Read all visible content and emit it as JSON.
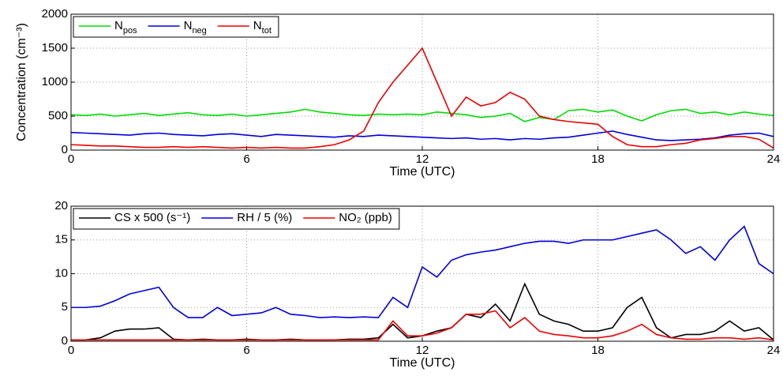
{
  "chart_data": [
    {
      "type": "line",
      "xlabel": "Time (UTC)",
      "ylabel": "Concentration (cm⁻³)",
      "x": [
        0,
        0.5,
        1,
        1.5,
        2,
        2.5,
        3,
        3.5,
        4,
        4.5,
        5,
        5.5,
        6,
        6.5,
        7,
        7.5,
        8,
        8.5,
        9,
        9.5,
        10,
        10.5,
        11,
        11.5,
        12,
        12.5,
        13,
        13.5,
        14,
        14.5,
        15,
        15.5,
        16,
        16.5,
        17,
        17.5,
        18,
        18.5,
        19,
        19.5,
        20,
        20.5,
        21,
        21.5,
        22,
        22.5,
        23,
        23.5,
        24
      ],
      "series": [
        {
          "name": "Npos",
          "color": "#00dd00",
          "values": [
            520,
            510,
            530,
            500,
            520,
            540,
            510,
            530,
            550,
            520,
            510,
            530,
            500,
            520,
            540,
            560,
            600,
            560,
            540,
            520,
            510,
            530,
            520,
            530,
            520,
            560,
            540,
            520,
            480,
            500,
            540,
            420,
            480,
            450,
            580,
            600,
            560,
            590,
            500,
            430,
            520,
            580,
            600,
            540,
            560,
            520,
            560,
            530,
            510
          ]
        },
        {
          "name": "Nneg",
          "color": "#0000dd",
          "values": [
            260,
            250,
            240,
            230,
            220,
            240,
            250,
            230,
            220,
            210,
            230,
            240,
            220,
            200,
            230,
            220,
            210,
            200,
            190,
            210,
            200,
            220,
            210,
            200,
            190,
            180,
            170,
            180,
            160,
            170,
            150,
            170,
            160,
            180,
            190,
            220,
            250,
            280,
            230,
            190,
            150,
            140,
            150,
            160,
            180,
            220,
            240,
            250,
            200
          ]
        },
        {
          "name": "Ntot",
          "color": "#ee0000",
          "values": [
            80,
            70,
            60,
            60,
            50,
            40,
            40,
            50,
            40,
            50,
            40,
            30,
            40,
            30,
            40,
            30,
            30,
            50,
            80,
            150,
            280,
            700,
            1000,
            1250,
            1500,
            1000,
            500,
            780,
            650,
            700,
            850,
            750,
            500,
            450,
            420,
            400,
            380,
            200,
            80,
            50,
            50,
            80,
            100,
            150,
            170,
            200,
            200,
            160,
            30
          ]
        }
      ],
      "xlim": [
        0,
        24
      ],
      "xticks": [
        0,
        6,
        12,
        18,
        24
      ],
      "ylim": [
        0,
        2000
      ],
      "yticks": [
        0,
        500,
        1000,
        1500,
        2000
      ],
      "grid": true,
      "legend": "top-left"
    },
    {
      "type": "line",
      "xlabel": "Time (UTC)",
      "x": [
        0,
        0.5,
        1,
        1.5,
        2,
        2.5,
        3,
        3.5,
        4,
        4.5,
        5,
        5.5,
        6,
        6.5,
        7,
        7.5,
        8,
        8.5,
        9,
        9.5,
        10,
        10.5,
        11,
        11.5,
        12,
        12.5,
        13,
        13.5,
        14,
        14.5,
        15,
        15.5,
        16,
        16.5,
        17,
        17.5,
        18,
        18.5,
        19,
        19.5,
        20,
        20.5,
        21,
        21.5,
        22,
        22.5,
        23,
        23.5,
        24
      ],
      "series": [
        {
          "name": "CS x 500 (s⁻¹)",
          "color": "#000000",
          "values": [
            0.2,
            0.2,
            0.5,
            1.5,
            1.8,
            1.8,
            2,
            0.3,
            0.2,
            0.3,
            0.2,
            0.2,
            0.3,
            0.2,
            0.2,
            0.3,
            0.2,
            0.2,
            0.2,
            0.3,
            0.3,
            0.5,
            2.5,
            0.5,
            0.8,
            1.5,
            2,
            4,
            3.5,
            5.5,
            3,
            8.5,
            4,
            3,
            2.5,
            1.5,
            1.5,
            2,
            5,
            6.5,
            2,
            0.5,
            1,
            1,
            1.5,
            3,
            1.5,
            2,
            0.2
          ]
        },
        {
          "name": "RH / 5 (%)",
          "color": "#0000dd",
          "values": [
            5,
            5,
            5.2,
            6,
            7,
            7.5,
            8,
            5,
            3.5,
            3.5,
            5,
            3.8,
            4,
            4.2,
            5,
            4,
            3.8,
            3.5,
            3.6,
            3.5,
            3.6,
            3.5,
            6.5,
            5,
            11,
            9.5,
            12,
            12.8,
            13.2,
            13.5,
            14,
            14.5,
            14.8,
            14.8,
            14.5,
            15,
            15,
            15,
            15.5,
            16,
            16.5,
            15,
            13,
            14,
            12,
            15,
            17,
            11.5,
            10
          ]
        },
        {
          "name": "NO₂ (ppb)",
          "color": "#ee0000",
          "values": [
            0.2,
            0.2,
            0.2,
            0.2,
            0.2,
            0.2,
            0.2,
            0.2,
            0.2,
            0.2,
            0.2,
            0.2,
            0.2,
            0.2,
            0.2,
            0.2,
            0.2,
            0.2,
            0.2,
            0.2,
            0.2,
            0.2,
            3,
            0.8,
            0.8,
            1.2,
            2,
            4,
            4,
            4.5,
            2,
            3.5,
            1.5,
            1,
            0.8,
            0.5,
            0.5,
            0.8,
            1.5,
            2.5,
            1,
            0.5,
            0.3,
            0.3,
            0.5,
            0.5,
            0.3,
            0.5,
            0.2
          ]
        }
      ],
      "xlim": [
        0,
        24
      ],
      "xticks": [
        0,
        6,
        12,
        18,
        24
      ],
      "ylim": [
        0,
        20
      ],
      "yticks": [
        0,
        5,
        10,
        15,
        20
      ],
      "grid": true,
      "legend": "top-left"
    }
  ]
}
